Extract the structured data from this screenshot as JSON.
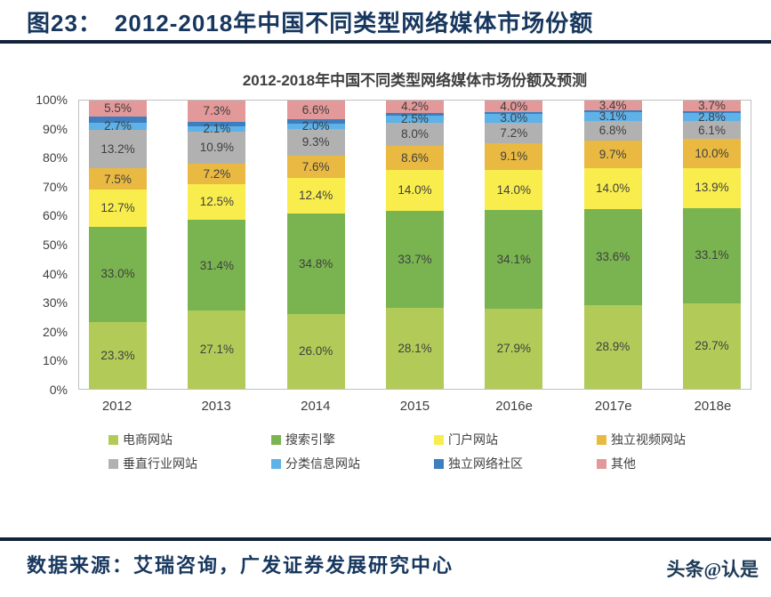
{
  "page": {
    "figure_label": "图23：",
    "figure_title": "2012-2018年中国不同类型网络媒体市场份额",
    "source_text": "数据来源：艾瑞咨询，广发证券发展研究中心",
    "watermark": "头条@认是"
  },
  "chart_data": {
    "type": "bar",
    "stacked": true,
    "title": "2012-2018年中国不同类型网络媒体市场份额及预测",
    "categories": [
      "2012",
      "2013",
      "2014",
      "2015",
      "2016e",
      "2017e",
      "2018e"
    ],
    "y_ticks": [
      "100%",
      "90%",
      "80%",
      "70%",
      "60%",
      "50%",
      "40%",
      "30%",
      "20%",
      "10%",
      "0%"
    ],
    "ylim": [
      0,
      100
    ],
    "grid": false,
    "legend_position": "bottom",
    "series": [
      {
        "name": "电商网站",
        "color": "#b2cb58",
        "values": [
          23.3,
          27.1,
          26.0,
          28.1,
          27.9,
          28.9,
          29.7
        ]
      },
      {
        "name": "搜索引擎",
        "color": "#7ab450",
        "values": [
          33.0,
          31.4,
          34.8,
          33.7,
          34.1,
          33.6,
          33.1
        ]
      },
      {
        "name": "门户网站",
        "color": "#f8ed4d",
        "values": [
          12.7,
          12.5,
          12.4,
          14.0,
          14.0,
          14.0,
          13.9
        ]
      },
      {
        "name": "独立视频网站",
        "color": "#e9b941",
        "values": [
          7.5,
          7.2,
          7.6,
          8.6,
          9.1,
          9.7,
          10.0
        ]
      },
      {
        "name": "垂直行业网站",
        "color": "#b1b1b1",
        "values": [
          13.2,
          10.9,
          9.3,
          8.0,
          7.2,
          6.8,
          6.1
        ]
      },
      {
        "name": "分类信息网站",
        "color": "#5eb2e7",
        "values": [
          2.7,
          2.1,
          2.0,
          2.5,
          3.0,
          3.1,
          2.8
        ]
      },
      {
        "name": "独立网络社区",
        "color": "#3d7ebf",
        "values": [
          2.1,
          1.5,
          1.3,
          0.9,
          0.7,
          0.5,
          0.7
        ],
        "labels_shown": false
      },
      {
        "name": "其他",
        "color": "#e39899",
        "values": [
          5.5,
          7.3,
          6.6,
          4.2,
          4.0,
          3.4,
          3.7
        ]
      }
    ]
  }
}
